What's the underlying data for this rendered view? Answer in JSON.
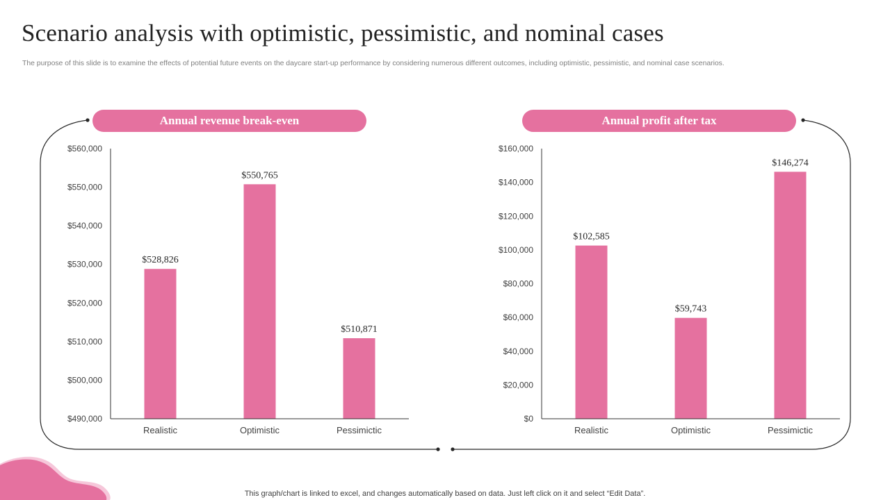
{
  "page": {
    "title": "Scenario analysis with optimistic, pessimistic, and nominal cases",
    "subtitle": "The purpose of this slide is to examine the effects of potential future events on the daycare start-up performance by considering numerous different outcomes, including optimistic, pessimistic, and nominal case scenarios.",
    "footer": "This graph/chart is linked to excel,  and changes automatically based on data. Just left click on it and select “Edit Data”."
  },
  "colors": {
    "accent": "#e5719f",
    "axis": "#333333",
    "text": "#404040",
    "frame": "#262626"
  },
  "chart_data": [
    {
      "type": "bar",
      "title": "Annual revenue break-even",
      "categories": [
        "Realistic",
        "Optimistic",
        "Pessimictic"
      ],
      "values": [
        528826,
        550765,
        510871
      ],
      "data_labels": [
        "$528,826",
        "$550,765",
        "$510,871"
      ],
      "ylim": [
        490000,
        560000
      ],
      "yticks": [
        490000,
        500000,
        510000,
        520000,
        530000,
        540000,
        550000,
        560000
      ],
      "ytick_labels": [
        "$490,000",
        "$500,000",
        "$510,000",
        "$520,000",
        "$530,000",
        "$540,000",
        "$550,000",
        "$560,000"
      ],
      "grid": false,
      "color": "#e5719f"
    },
    {
      "type": "bar",
      "title": "Annual profit after tax",
      "categories": [
        "Realistic",
        "Optimistic",
        "Pessimictic"
      ],
      "values": [
        102585,
        59743,
        146274
      ],
      "data_labels": [
        "$102,585",
        "$59,743",
        "$146,274"
      ],
      "ylim": [
        0,
        160000
      ],
      "yticks": [
        0,
        20000,
        40000,
        60000,
        80000,
        100000,
        120000,
        140000,
        160000
      ],
      "ytick_labels": [
        "$0",
        "$20,000",
        "$40,000",
        "$60,000",
        "$80,000",
        "$100,000",
        "$120,000",
        "$140,000",
        "$160,000"
      ],
      "grid": false,
      "color": "#e5719f"
    }
  ]
}
